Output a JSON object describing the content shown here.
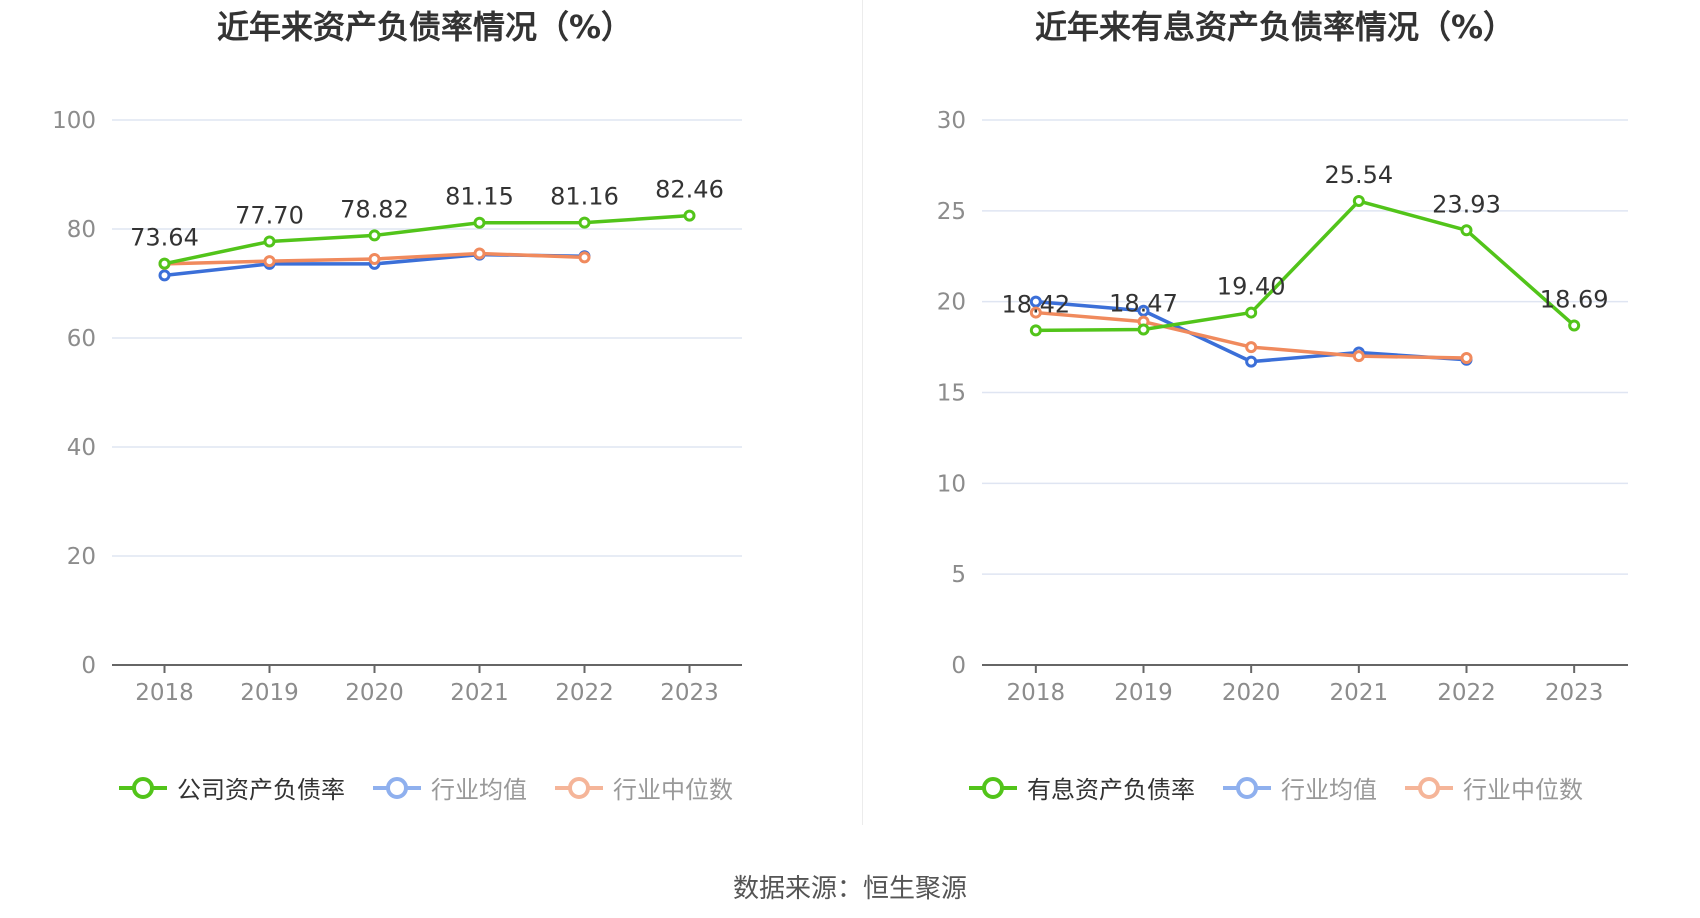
{
  "source": "数据来源：恒生聚源",
  "charts": [
    {
      "id": "left",
      "title": "近年来资产负债率情况（%）",
      "chart_data": {
        "type": "line",
        "title": "近年来资产负债率情况（%）",
        "categories": [
          "2018",
          "2019",
          "2020",
          "2021",
          "2022",
          "2023"
        ],
        "ylim": [
          0,
          100
        ],
        "yticks": [
          0,
          20,
          40,
          60,
          80,
          100
        ],
        "ytick_labels": [
          "0",
          "20",
          "40",
          "60",
          "80",
          "100"
        ],
        "grid": true,
        "legend_position": "bottom",
        "series": [
          {
            "name": "公司资产负债率",
            "color": "#52c41a",
            "values": [
              73.64,
              77.7,
              78.82,
              81.15,
              81.16,
              82.46
            ],
            "labels": [
              "73.64",
              "77.70",
              "78.82",
              "81.15",
              "81.16",
              "82.46"
            ],
            "show_labels": true
          },
          {
            "name": "行业均值",
            "color": "#3b6fd8",
            "values": [
              71.5,
              73.6,
              73.6,
              75.3,
              75.0,
              null
            ],
            "show_labels": false
          },
          {
            "name": "行业中位数",
            "color": "#f08a5d",
            "values": [
              73.6,
              74.1,
              74.5,
              75.5,
              74.8,
              null
            ],
            "show_labels": false
          }
        ]
      }
    },
    {
      "id": "right",
      "title": "近年来有息资产负债率情况（%）",
      "chart_data": {
        "type": "line",
        "title": "近年来有息资产负债率情况（%）",
        "categories": [
          "2018",
          "2019",
          "2020",
          "2021",
          "2022",
          "2023"
        ],
        "ylim": [
          0,
          30
        ],
        "yticks": [
          0,
          5,
          10,
          15,
          20,
          25,
          30
        ],
        "ytick_labels": [
          "0",
          "5",
          "10",
          "15",
          "20",
          "25",
          "30"
        ],
        "grid": true,
        "legend_position": "bottom",
        "series": [
          {
            "name": "有息资产负债率",
            "color": "#52c41a",
            "values": [
              18.42,
              18.47,
              19.4,
              25.54,
              23.93,
              18.69
            ],
            "labels": [
              "18.42",
              "18.47",
              "19.40",
              "25.54",
              "23.93",
              "18.69"
            ],
            "show_labels": true
          },
          {
            "name": "行业均值",
            "color": "#3b6fd8",
            "values": [
              20.0,
              19.5,
              16.7,
              17.2,
              16.8,
              null
            ],
            "show_labels": false
          },
          {
            "name": "行业中位数",
            "color": "#f08a5d",
            "values": [
              19.4,
              18.9,
              17.5,
              17.0,
              16.9,
              null
            ],
            "show_labels": false
          }
        ]
      }
    }
  ]
}
